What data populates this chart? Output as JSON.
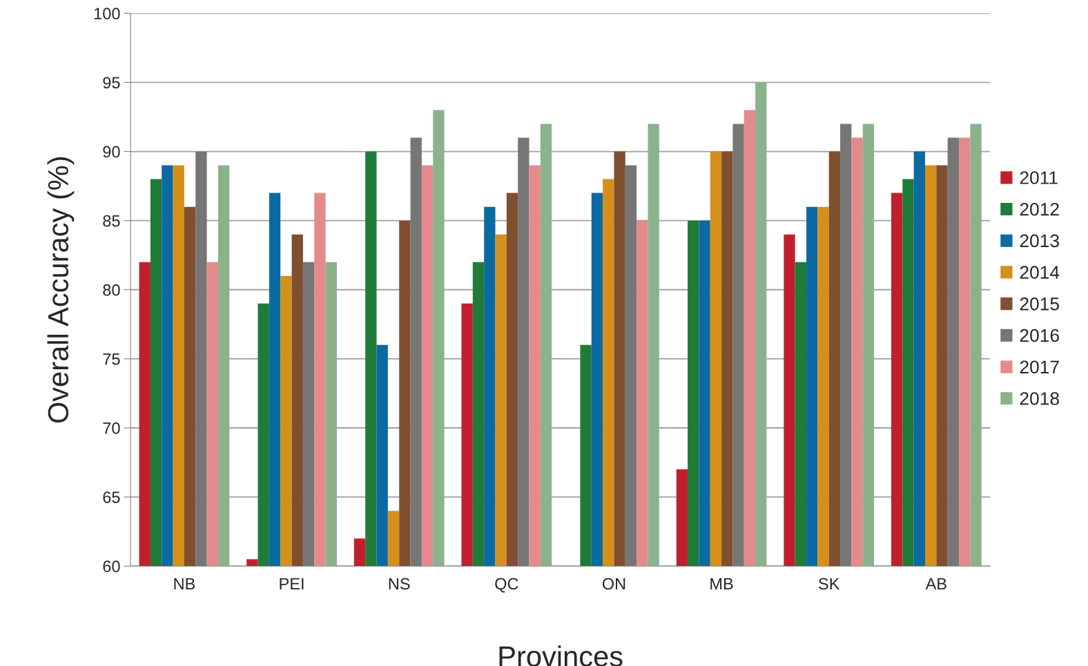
{
  "chart_data": {
    "type": "bar",
    "xlabel": "Provinces",
    "ylabel": "Overall Accuracy (%)",
    "categories": [
      "NB",
      "PEI",
      "NS",
      "QC",
      "ON",
      "MB",
      "SK",
      "AB"
    ],
    "series": [
      {
        "name": "2011",
        "color": "#c0202e",
        "values": [
          82,
          60.5,
          62,
          79,
          null,
          67,
          84,
          87
        ]
      },
      {
        "name": "2012",
        "color": "#1e7b3a",
        "values": [
          88,
          79,
          90,
          82,
          76,
          85,
          82,
          88
        ]
      },
      {
        "name": "2013",
        "color": "#0a6aa1",
        "values": [
          89,
          87,
          76,
          86,
          87,
          85,
          86,
          90
        ]
      },
      {
        "name": "2014",
        "color": "#d4901a",
        "values": [
          89,
          81,
          64,
          84,
          88,
          90,
          86,
          89
        ]
      },
      {
        "name": "2015",
        "color": "#7f4f30",
        "values": [
          86,
          84,
          85,
          87,
          90,
          90,
          90,
          89
        ]
      },
      {
        "name": "2016",
        "color": "#767676",
        "values": [
          90,
          82,
          91,
          91,
          89,
          92,
          92,
          91
        ]
      },
      {
        "name": "2017",
        "color": "#e48a8a",
        "values": [
          82,
          87,
          89,
          89,
          85,
          93,
          91,
          91
        ]
      },
      {
        "name": "2018",
        "color": "#8ab28c",
        "values": [
          89,
          82,
          93,
          92,
          92,
          95,
          92,
          92
        ]
      }
    ],
    "ylim": [
      60,
      100
    ],
    "yticks": [
      60,
      65,
      70,
      75,
      80,
      85,
      90,
      95,
      100
    ],
    "grid": "y",
    "legend": "right"
  }
}
